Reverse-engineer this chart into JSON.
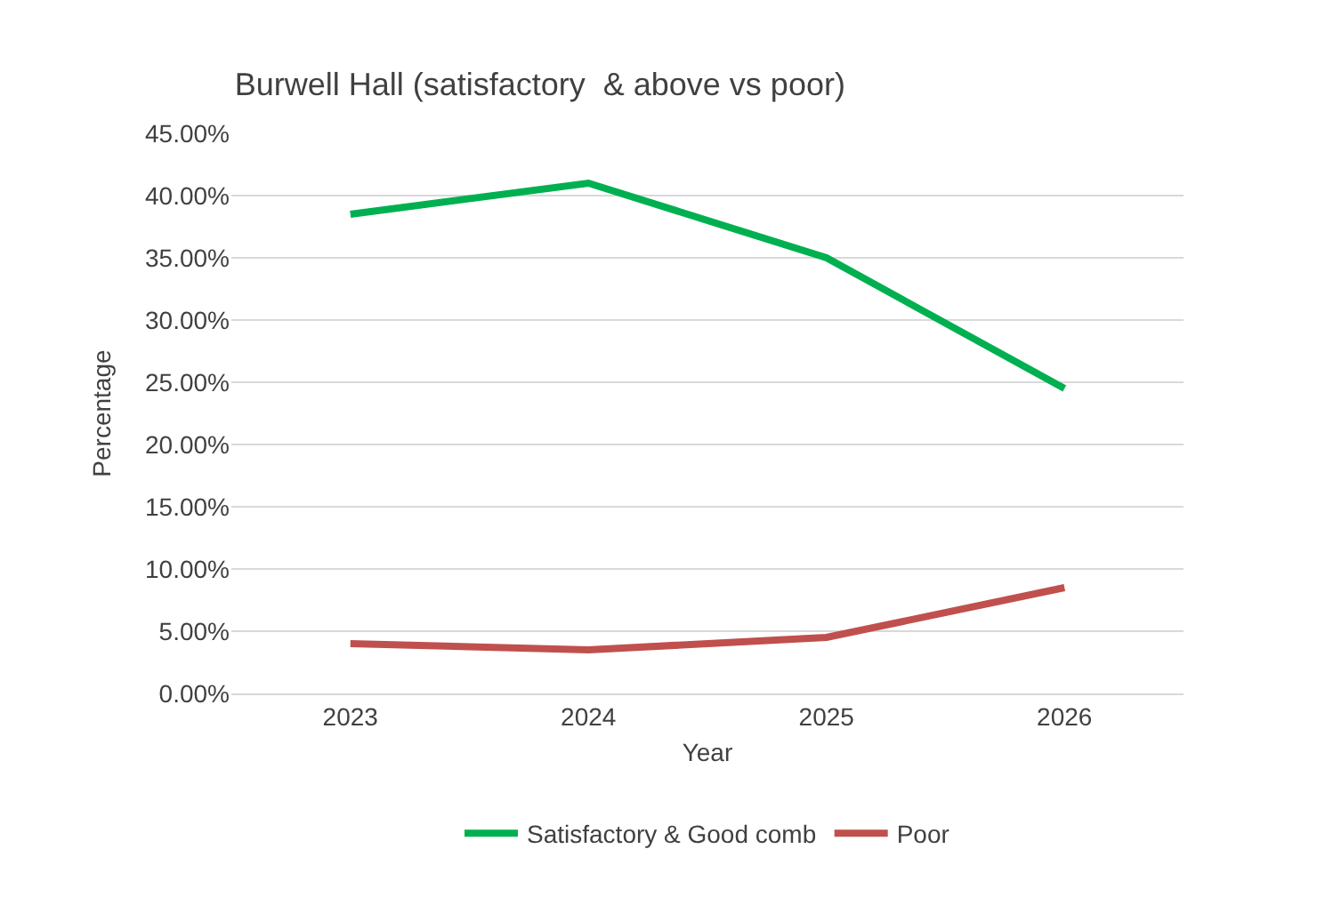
{
  "chart_data": {
    "type": "line",
    "title": "Burwell Hall (satisfactory  & above vs poor)",
    "xlabel": "Year",
    "ylabel": "Percentage",
    "categories": [
      "2023",
      "2024",
      "2025",
      "2026"
    ],
    "series": [
      {
        "name": "Satisfactory & Good comb",
        "color": "#00b050",
        "values": [
          38.5,
          41,
          35,
          24.5
        ]
      },
      {
        "name": "Poor",
        "color": "#c0504d",
        "values": [
          4,
          3.5,
          4.5,
          8.5
        ]
      }
    ],
    "ylim": [
      0,
      45
    ],
    "yticks": [
      {
        "value": 0,
        "label": "0.00%"
      },
      {
        "value": 5,
        "label": "5.00%"
      },
      {
        "value": 10,
        "label": "10.00%"
      },
      {
        "value": 15,
        "label": "15.00%"
      },
      {
        "value": 20,
        "label": "20.00%"
      },
      {
        "value": 25,
        "label": "25.00%"
      },
      {
        "value": 30,
        "label": "30.00%"
      },
      {
        "value": 35,
        "label": "35.00%"
      },
      {
        "value": 40,
        "label": "40.00%"
      },
      {
        "value": 45,
        "label": "45.00%"
      }
    ],
    "grid": "y",
    "legend": "bottom",
    "marker": "none",
    "line_style": "solid"
  }
}
